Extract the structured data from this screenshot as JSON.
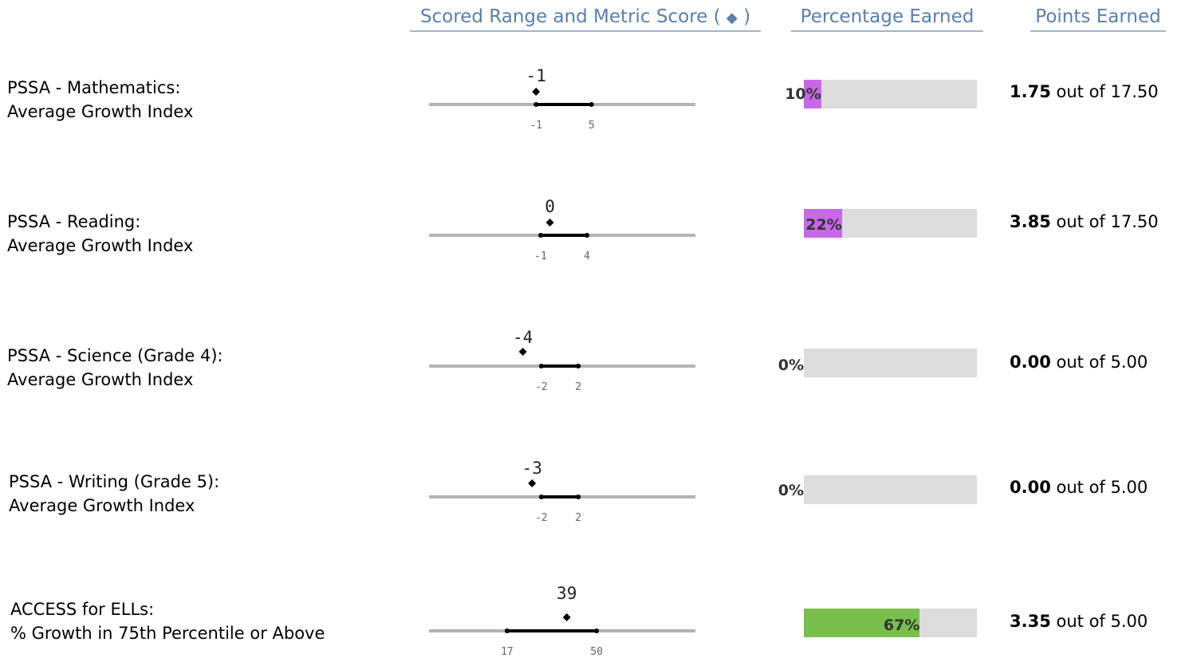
{
  "headers": {
    "range": "Scored Range and Metric Score",
    "range_open": "(",
    "range_diamond": "◆",
    "range_close": ")",
    "percentage": "Percentage Earned",
    "points": "Points Earned"
  },
  "colors": {
    "header_text": "#5a7fa8",
    "bar_fill_low": "#c768e8",
    "bar_fill_high": "#79bf4c",
    "bar_track": "#dcdcdc"
  },
  "rows": [
    {
      "label_line1": "PSSA - Mathematics:",
      "label_line2": "Average Growth Index",
      "score": -1,
      "score_label": "-1",
      "range_min": -1,
      "range_max": 5,
      "range_min_label": "-1",
      "range_max_label": "5",
      "percent": 10,
      "percent_label": "10%",
      "fill_color": "#c768e8",
      "points_earned": "1.75",
      "out_of_text": "out of",
      "points_possible": "17.50"
    },
    {
      "label_line1": "PSSA - Reading:",
      "label_line2": "Average Growth Index",
      "score": 0,
      "score_label": "0",
      "range_min": -1,
      "range_max": 4,
      "range_min_label": "-1",
      "range_max_label": "4",
      "percent": 22,
      "percent_label": "22%",
      "fill_color": "#c768e8",
      "points_earned": "3.85",
      "out_of_text": "out of",
      "points_possible": "17.50"
    },
    {
      "label_line1": "PSSA - Science (Grade 4):",
      "label_line2": "Average Growth Index",
      "score": -4,
      "score_label": "-4",
      "range_min": -2,
      "range_max": 2,
      "range_min_label": "-2",
      "range_max_label": "2",
      "percent": 0,
      "percent_label": "0%",
      "fill_color": "#c768e8",
      "points_earned": "0.00",
      "out_of_text": "out of",
      "points_possible": "5.00"
    },
    {
      "label_line1": "PSSA - Writing (Grade 5):",
      "label_line2": "Average Growth Index",
      "score": -3,
      "score_label": "-3",
      "range_min": -2,
      "range_max": 2,
      "range_min_label": "-2",
      "range_max_label": "2",
      "percent": 0,
      "percent_label": "0%",
      "fill_color": "#c768e8",
      "points_earned": "0.00",
      "out_of_text": "out of",
      "points_possible": "5.00"
    },
    {
      "label_line1": "ACCESS for ELLs:",
      "label_line2": "% Growth in 75th Percentile or Above",
      "score": 39,
      "score_label": "39",
      "range_min": 17,
      "range_max": 50,
      "range_min_label": "17",
      "range_max_label": "50",
      "percent": 67,
      "percent_label": "67%",
      "fill_color": "#79bf4c",
      "points_earned": "3.35",
      "out_of_text": "out of",
      "points_possible": "5.00"
    }
  ]
}
